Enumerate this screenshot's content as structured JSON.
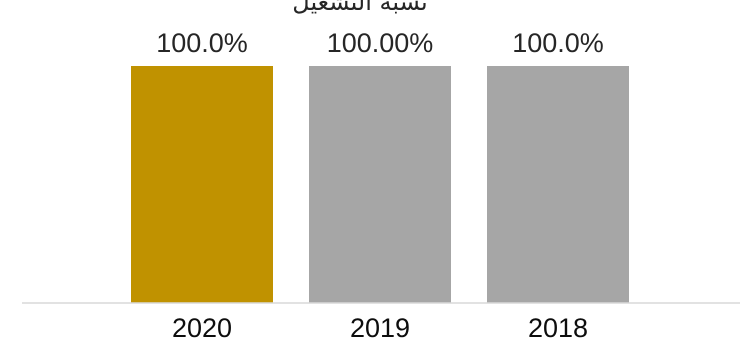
{
  "chart_data": {
    "type": "bar",
    "title": "نسبة التشغيل",
    "categories": [
      "2020",
      "2019",
      "2018"
    ],
    "values": [
      100.0,
      100.0,
      100.0
    ],
    "data_labels": [
      "100.0%",
      "100.00%",
      "100.0%"
    ],
    "ylim": [
      0,
      100
    ],
    "grid": false,
    "legend": "none",
    "colors": [
      "#C09200",
      "#A6A6A6",
      "#A6A6A6"
    ],
    "axis_line_color": "#D9D9D9"
  }
}
